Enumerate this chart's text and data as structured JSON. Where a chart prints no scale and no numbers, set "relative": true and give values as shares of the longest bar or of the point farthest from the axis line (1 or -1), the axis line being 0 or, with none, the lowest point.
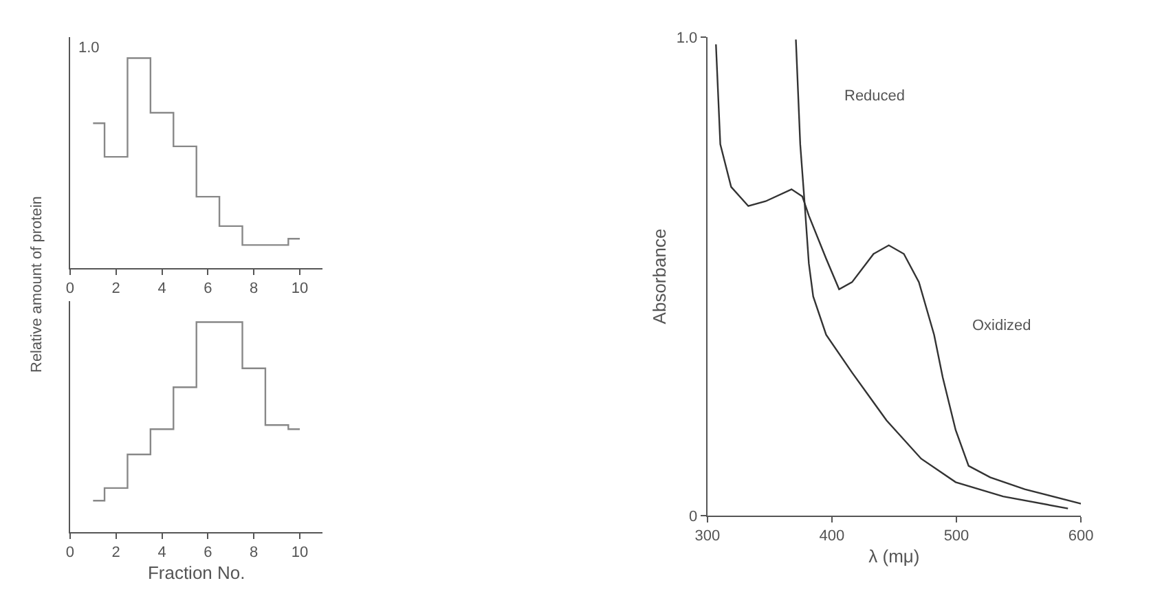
{
  "chart_data": [
    {
      "type": "step",
      "relative": true,
      "x": [
        1,
        2,
        3,
        4,
        5,
        6,
        7,
        8,
        9,
        10
      ],
      "xlim": [
        0,
        11
      ],
      "xticks": [
        0,
        2,
        4,
        6,
        8,
        10
      ],
      "annotations": [
        "1.0"
      ],
      "ylabel": "Relative amount of protein",
      "series": [
        {
          "color": "#888888",
          "values": [
            0.69,
            0.53,
            1.0,
            0.74,
            0.58,
            0.34,
            0.2,
            0.11,
            0.11,
            0.14
          ]
        }
      ]
    },
    {
      "type": "step",
      "relative": true,
      "x": [
        1,
        2,
        3,
        4,
        5,
        6,
        7,
        8,
        9,
        10
      ],
      "xlim": [
        0,
        11
      ],
      "xticks": [
        0,
        2,
        4,
        6,
        8,
        10
      ],
      "xlabel": "Fraction No.",
      "series": [
        {
          "color": "#888888",
          "values": [
            0.15,
            0.21,
            0.37,
            0.49,
            0.69,
            1.0,
            1.0,
            0.78,
            0.51,
            0.49
          ]
        }
      ]
    },
    {
      "type": "line",
      "xlabel": "λ (mμ)",
      "ylabel": "Absorbance",
      "xlim": [
        300,
        600
      ],
      "xticks": [
        300,
        400,
        500,
        600
      ],
      "ylim": [
        0,
        1.0
      ],
      "yticks": [
        0,
        {
          "value": 1.0,
          "label": "1.0"
        }
      ],
      "marker": "none",
      "line_style": "solid",
      "annotations": [
        "Reduced",
        "Oxidized"
      ],
      "series": [
        {
          "color": "#333333",
          "x": [
            306.9,
            310.4,
            319.1,
            332.9,
            346.8,
            367.6,
            376.3,
            381.5,
            395.4,
            405.8,
            416.2,
            433.5,
            445.7,
            457.8,
            469.9,
            482.1,
            489.0,
            499.4,
            509.8,
            527.2,
            554.9,
            600
          ],
          "values": [
            0.985,
            0.776,
            0.687,
            0.647,
            0.657,
            0.682,
            0.667,
            0.627,
            0.537,
            0.473,
            0.488,
            0.547,
            0.565,
            0.547,
            0.488,
            0.378,
            0.289,
            0.179,
            0.104,
            0.08,
            0.055,
            0.025
          ]
        },
        {
          "color": "#333333",
          "x": [
            371.1,
            374.6,
            378.0,
            381.5,
            385.0,
            395.4,
            416.2,
            443.9,
            471.7,
            499.4,
            537.6,
            589.6
          ],
          "values": [
            0.995,
            0.776,
            0.657,
            0.527,
            0.458,
            0.378,
            0.299,
            0.199,
            0.119,
            0.07,
            0.04,
            0.015
          ]
        }
      ]
    }
  ]
}
